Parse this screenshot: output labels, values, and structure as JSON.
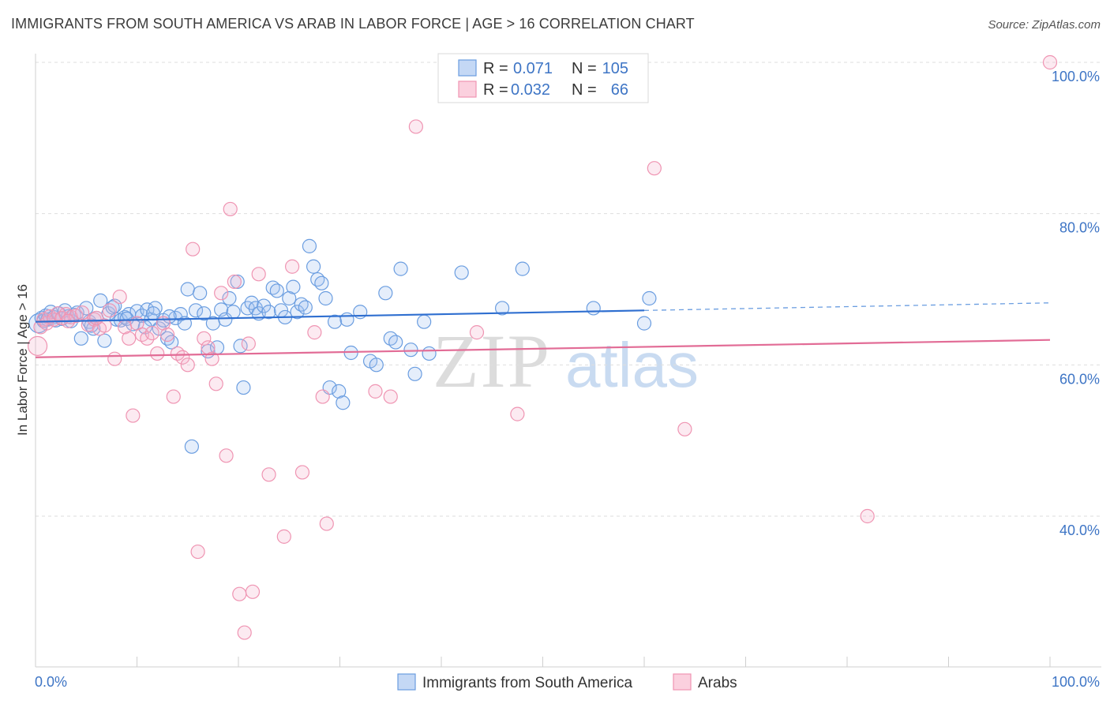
{
  "header": {
    "title": "IMMIGRANTS FROM SOUTH AMERICA VS ARAB IN LABOR FORCE | AGE > 16 CORRELATION CHART",
    "source": "Source: ZipAtlas.com"
  },
  "watermark": {
    "zip": "ZIP",
    "atlas": "atlas"
  },
  "legend": {
    "rows": [
      {
        "r_label": "R =",
        "r_value": "0.071",
        "n_label": "N =",
        "n_value": "105",
        "color": "#6a9de0"
      },
      {
        "r_label": "R =",
        "r_value": "0.032",
        "n_label": "N =",
        "n_value": "66",
        "color": "#ef94b2"
      }
    ]
  },
  "bottom_legend": [
    {
      "label": "Immigrants from South America",
      "color": "#6a9de0"
    },
    {
      "label": "Arabs",
      "color": "#ef94b2"
    }
  ],
  "chart_data": {
    "type": "scatter",
    "title": "IMMIGRANTS FROM SOUTH AMERICA VS ARAB IN LABOR FORCE | AGE > 16 CORRELATION CHART",
    "xlabel": "",
    "ylabel": "In Labor Force | Age > 16",
    "xlim": [
      0,
      100
    ],
    "ylim": [
      20,
      100
    ],
    "x_tick_labels": [
      "0.0%",
      "100.0%"
    ],
    "y_ticks": [
      40,
      60,
      80,
      100
    ],
    "y_tick_labels": [
      "40.0%",
      "60.0%",
      "80.0%",
      "100.0%"
    ],
    "grid": true,
    "legend_position": "top-center",
    "series": [
      {
        "name": "Immigrants from South America",
        "color": "#6a9de0",
        "trend": {
          "x0": 0,
          "y0": 65.7,
          "x1": 60,
          "y1": 67.2,
          "dash_to_x": 100,
          "dash_to_y": 68.2
        },
        "points": [
          [
            0.3,
            65.5
          ],
          [
            0.6,
            66.2
          ],
          [
            0.8,
            65.8
          ],
          [
            1.0,
            66.5
          ],
          [
            1.2,
            66.0
          ],
          [
            1.5,
            67.0
          ],
          [
            1.8,
            66.3
          ],
          [
            2.0,
            65.9
          ],
          [
            2.3,
            66.8
          ],
          [
            2.6,
            66.1
          ],
          [
            2.9,
            67.2
          ],
          [
            3.2,
            66.4
          ],
          [
            3.5,
            65.8
          ],
          [
            3.8,
            66.6
          ],
          [
            4.1,
            66.9
          ],
          [
            4.5,
            63.5
          ],
          [
            5.0,
            67.5
          ],
          [
            5.3,
            65.7
          ],
          [
            5.7,
            64.8
          ],
          [
            6.0,
            66.2
          ],
          [
            6.4,
            68.5
          ],
          [
            6.8,
            63.2
          ],
          [
            7.2,
            66.8
          ],
          [
            7.6,
            67.6
          ],
          [
            8.0,
            66.0
          ],
          [
            8.4,
            65.9
          ],
          [
            8.8,
            66.3
          ],
          [
            9.2,
            66.7
          ],
          [
            9.6,
            65.4
          ],
          [
            10.0,
            67.1
          ],
          [
            10.5,
            66.5
          ],
          [
            11.0,
            67.3
          ],
          [
            11.4,
            66.0
          ],
          [
            11.8,
            67.5
          ],
          [
            12.2,
            64.8
          ],
          [
            12.6,
            65.9
          ],
          [
            13.0,
            63.5
          ],
          [
            13.4,
            63.0
          ],
          [
            13.8,
            66.2
          ],
          [
            14.3,
            66.7
          ],
          [
            14.7,
            65.5
          ],
          [
            15.0,
            70.0
          ],
          [
            15.4,
            49.2
          ],
          [
            15.8,
            67.2
          ],
          [
            16.2,
            69.5
          ],
          [
            16.6,
            66.8
          ],
          [
            17.0,
            61.8
          ],
          [
            17.5,
            65.5
          ],
          [
            17.9,
            62.3
          ],
          [
            18.3,
            67.3
          ],
          [
            18.7,
            66.0
          ],
          [
            19.1,
            68.8
          ],
          [
            19.5,
            67.0
          ],
          [
            19.9,
            71.0
          ],
          [
            20.2,
            62.5
          ],
          [
            20.5,
            57.0
          ],
          [
            20.9,
            67.5
          ],
          [
            21.3,
            68.2
          ],
          [
            21.7,
            67.5
          ],
          [
            22.0,
            66.8
          ],
          [
            22.5,
            67.8
          ],
          [
            23.0,
            67.0
          ],
          [
            23.4,
            70.2
          ],
          [
            23.8,
            69.8
          ],
          [
            24.2,
            67.2
          ],
          [
            24.6,
            66.3
          ],
          [
            25.0,
            68.8
          ],
          [
            25.4,
            70.3
          ],
          [
            25.8,
            67.0
          ],
          [
            26.2,
            68.0
          ],
          [
            26.6,
            67.6
          ],
          [
            27.0,
            75.7
          ],
          [
            27.4,
            73.0
          ],
          [
            27.8,
            71.3
          ],
          [
            28.2,
            70.8
          ],
          [
            28.6,
            68.8
          ],
          [
            29.0,
            57.0
          ],
          [
            29.5,
            65.7
          ],
          [
            29.9,
            56.5
          ],
          [
            30.3,
            55.0
          ],
          [
            30.7,
            66.0
          ],
          [
            31.1,
            61.6
          ],
          [
            32.0,
            67.0
          ],
          [
            33.0,
            60.5
          ],
          [
            33.6,
            60.0
          ],
          [
            34.5,
            69.5
          ],
          [
            35.0,
            63.5
          ],
          [
            35.5,
            63.0
          ],
          [
            36.0,
            72.7
          ],
          [
            37.0,
            62.0
          ],
          [
            37.4,
            58.8
          ],
          [
            38.3,
            65.7
          ],
          [
            38.8,
            61.5
          ],
          [
            42.0,
            72.2
          ],
          [
            46.0,
            67.5
          ],
          [
            48.0,
            72.7
          ],
          [
            55.0,
            67.5
          ],
          [
            60.0,
            65.5
          ],
          [
            60.5,
            68.8
          ],
          [
            7.8,
            67.8
          ],
          [
            9.0,
            66.1
          ],
          [
            10.8,
            65.0
          ],
          [
            11.6,
            66.8
          ],
          [
            13.2,
            66.4
          ],
          [
            5.5,
            65.2
          ]
        ]
      },
      {
        "name": "Arabs",
        "color": "#ef94b2",
        "trend": {
          "x0": 0,
          "y0": 61.0,
          "x1": 100,
          "y1": 63.3
        },
        "points": [
          [
            0.2,
            62.5
          ],
          [
            0.5,
            65.0
          ],
          [
            0.8,
            66.0
          ],
          [
            1.1,
            65.5
          ],
          [
            1.4,
            66.4
          ],
          [
            1.8,
            66.0
          ],
          [
            2.2,
            66.8
          ],
          [
            2.6,
            66.2
          ],
          [
            3.0,
            66.7
          ],
          [
            3.5,
            66.3
          ],
          [
            4.0,
            66.5
          ],
          [
            4.6,
            66.9
          ],
          [
            5.2,
            65.3
          ],
          [
            5.8,
            66.0
          ],
          [
            6.3,
            64.8
          ],
          [
            6.8,
            65.2
          ],
          [
            7.3,
            67.2
          ],
          [
            7.8,
            60.8
          ],
          [
            8.3,
            69.0
          ],
          [
            8.8,
            65.0
          ],
          [
            9.2,
            63.5
          ],
          [
            9.6,
            53.3
          ],
          [
            10.0,
            65.5
          ],
          [
            10.5,
            64.0
          ],
          [
            11.0,
            63.5
          ],
          [
            11.5,
            64.2
          ],
          [
            12.0,
            61.5
          ],
          [
            12.6,
            65.5
          ],
          [
            13.0,
            64.0
          ],
          [
            13.6,
            55.8
          ],
          [
            14.0,
            61.5
          ],
          [
            14.5,
            61.0
          ],
          [
            15.0,
            60.0
          ],
          [
            15.5,
            75.3
          ],
          [
            16.0,
            35.3
          ],
          [
            16.6,
            63.5
          ],
          [
            17.0,
            62.3
          ],
          [
            17.4,
            60.8
          ],
          [
            17.8,
            57.5
          ],
          [
            18.3,
            69.5
          ],
          [
            18.8,
            48.0
          ],
          [
            19.2,
            80.6
          ],
          [
            19.6,
            71.0
          ],
          [
            20.1,
            29.7
          ],
          [
            20.6,
            24.6
          ],
          [
            21.0,
            62.8
          ],
          [
            21.4,
            30.0
          ],
          [
            22.0,
            72.0
          ],
          [
            23.0,
            45.5
          ],
          [
            24.5,
            37.3
          ],
          [
            25.3,
            73.0
          ],
          [
            26.3,
            45.8
          ],
          [
            27.5,
            64.3
          ],
          [
            28.3,
            55.8
          ],
          [
            28.7,
            39.0
          ],
          [
            33.5,
            56.5
          ],
          [
            35.0,
            55.8
          ],
          [
            37.5,
            91.5
          ],
          [
            43.5,
            64.3
          ],
          [
            47.5,
            53.5
          ],
          [
            61.0,
            86.0
          ],
          [
            64.0,
            51.5
          ],
          [
            82.0,
            40.0
          ],
          [
            100.0,
            100.0
          ],
          [
            3.2,
            65.8
          ],
          [
            6.0,
            66.2
          ]
        ]
      }
    ]
  }
}
